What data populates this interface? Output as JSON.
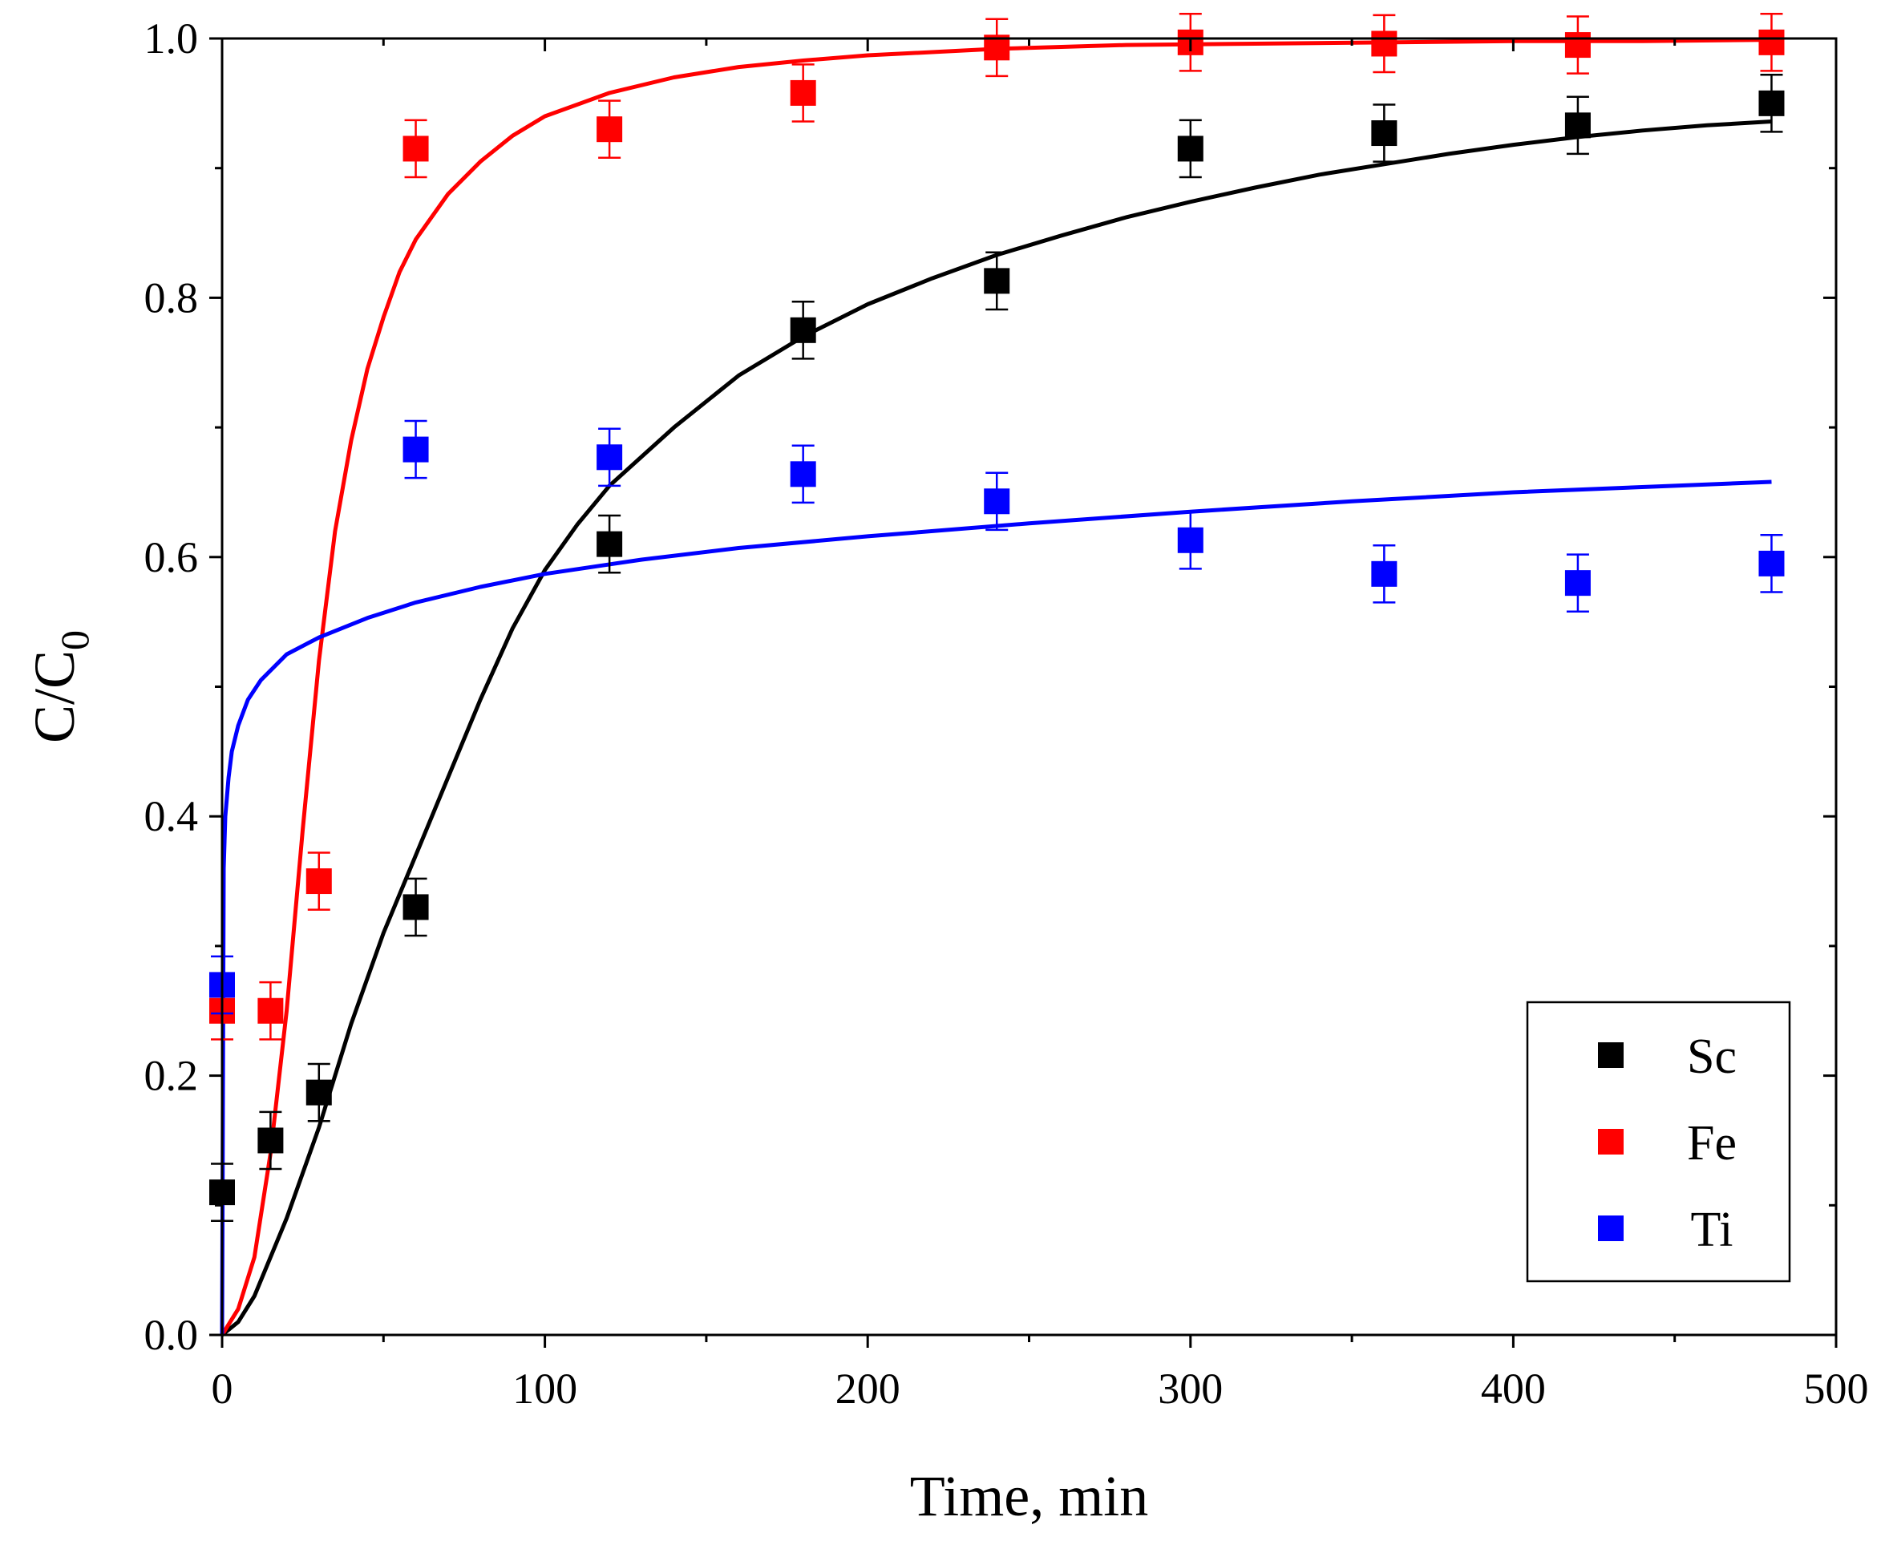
{
  "chart_data": {
    "type": "scatter",
    "title": "",
    "xlabel": "Time, min",
    "ylabel": {
      "main": "C/C",
      "sub": "0"
    },
    "xlim": [
      0,
      500
    ],
    "ylim": [
      0,
      1.0
    ],
    "xticks": [
      0,
      100,
      200,
      300,
      400,
      500
    ],
    "xtick_labels": [
      "0",
      "100",
      "200",
      "300",
      "400",
      "500"
    ],
    "yticks": [
      0.0,
      0.2,
      0.4,
      0.6,
      0.8,
      1.0
    ],
    "ytick_labels": [
      "0.0",
      "0.2",
      "0.4",
      "0.6",
      "0.8",
      "1.0"
    ],
    "grid": false,
    "legend_position": "bottom-right",
    "x": [
      0,
      15,
      30,
      60,
      120,
      180,
      240,
      300,
      360,
      420,
      480
    ],
    "series": [
      {
        "name": "Sc",
        "color": "#000000",
        "values": [
          0.11,
          0.15,
          0.187,
          0.33,
          0.61,
          0.775,
          0.813,
          0.915,
          0.927,
          0.933,
          0.95
        ],
        "error": 0.022,
        "fit_x": [
          0,
          5,
          10,
          20,
          30,
          40,
          50,
          60,
          70,
          80,
          90,
          100,
          110,
          120,
          140,
          160,
          180,
          200,
          220,
          240,
          260,
          280,
          300,
          320,
          340,
          360,
          380,
          400,
          420,
          440,
          460,
          480
        ],
        "fit_y": [
          0.0,
          0.01,
          0.03,
          0.09,
          0.16,
          0.24,
          0.31,
          0.37,
          0.43,
          0.49,
          0.545,
          0.59,
          0.625,
          0.655,
          0.7,
          0.74,
          0.77,
          0.795,
          0.815,
          0.833,
          0.848,
          0.862,
          0.874,
          0.885,
          0.895,
          0.903,
          0.911,
          0.918,
          0.924,
          0.929,
          0.933,
          0.936
        ]
      },
      {
        "name": "Fe",
        "color": "#ff0000",
        "values": [
          0.25,
          0.25,
          0.35,
          0.915,
          0.93,
          0.958,
          0.993,
          0.997,
          0.996,
          0.995,
          0.997
        ],
        "error": 0.022,
        "fit_x": [
          0,
          5,
          10,
          15,
          20,
          25,
          30,
          35,
          40,
          45,
          50,
          55,
          60,
          70,
          80,
          90,
          100,
          120,
          140,
          160,
          180,
          200,
          240,
          280,
          320,
          360,
          400,
          440,
          480
        ],
        "fit_y": [
          0.0,
          0.02,
          0.06,
          0.14,
          0.25,
          0.39,
          0.52,
          0.62,
          0.69,
          0.745,
          0.785,
          0.82,
          0.845,
          0.88,
          0.905,
          0.925,
          0.94,
          0.958,
          0.97,
          0.978,
          0.983,
          0.987,
          0.992,
          0.995,
          0.996,
          0.997,
          0.998,
          0.998,
          0.999
        ]
      },
      {
        "name": "Ti",
        "color": "#0000ff",
        "values": [
          0.27,
          null,
          null,
          0.683,
          0.677,
          0.664,
          0.643,
          0.613,
          0.587,
          0.58,
          0.595
        ],
        "error": 0.022,
        "fit_x": [
          0,
          0.5,
          1,
          2,
          3,
          5,
          8,
          12,
          20,
          30,
          45,
          60,
          80,
          100,
          130,
          160,
          200,
          250,
          300,
          350,
          400,
          450,
          480
        ],
        "fit_y": [
          0.0,
          0.36,
          0.4,
          0.43,
          0.45,
          0.47,
          0.49,
          0.505,
          0.525,
          0.538,
          0.553,
          0.565,
          0.577,
          0.587,
          0.598,
          0.607,
          0.616,
          0.626,
          0.635,
          0.643,
          0.65,
          0.655,
          0.658
        ]
      }
    ],
    "legend": [
      {
        "label": "Sc",
        "color": "#000000"
      },
      {
        "label": "Fe",
        "color": "#ff0000"
      },
      {
        "label": "Ti",
        "color": "#0000ff"
      }
    ]
  }
}
